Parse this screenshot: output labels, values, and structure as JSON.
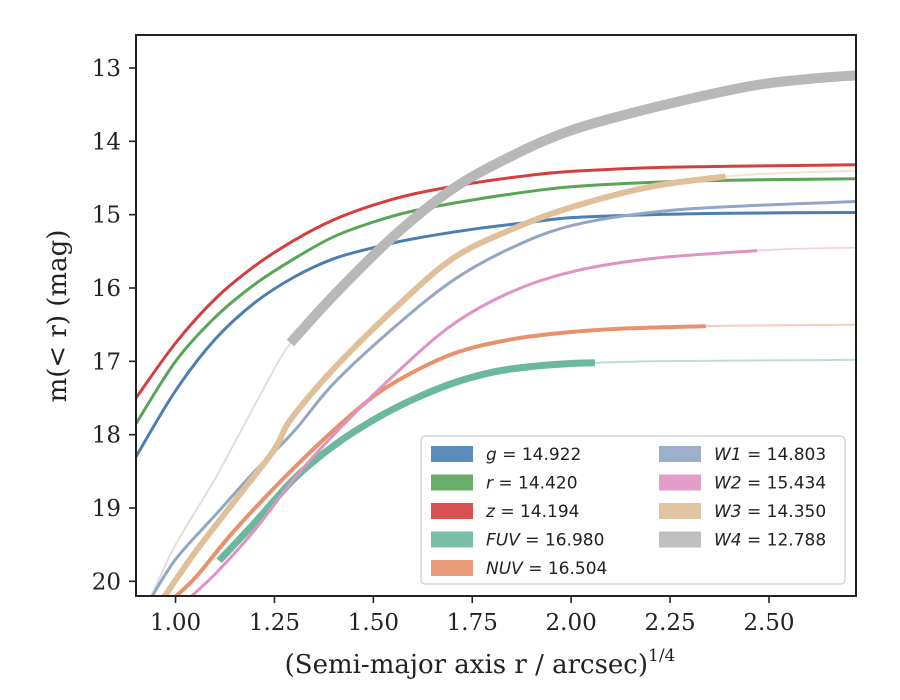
{
  "chart_data": {
    "type": "line",
    "xlabel": "(Semi-major axis r / arcsec)",
    "xlabel_sup": "1/4",
    "ylabel": "m(< r) (mag)",
    "xlim": [
      0.9,
      2.72
    ],
    "ylim": [
      20.2,
      12.55
    ],
    "y_inverted": true,
    "x_ticks": [
      1.0,
      1.25,
      1.5,
      1.75,
      2.0,
      2.25,
      2.5
    ],
    "x_tick_labels": [
      "1.00",
      "1.25",
      "1.50",
      "1.75",
      "2.00",
      "2.25",
      "2.50"
    ],
    "y_ticks": [
      13,
      14,
      15,
      16,
      17,
      18,
      19,
      20
    ],
    "y_tick_labels": [
      "13",
      "14",
      "15",
      "16",
      "17",
      "18",
      "19",
      "20"
    ],
    "grid": false,
    "legend_position": "lower-right",
    "series": [
      {
        "name": "g",
        "label": "= 14.922",
        "color": "#4a7fb0",
        "width": 3,
        "faint_width": 1.6,
        "bold_until": 2.72,
        "x": [
          0.9,
          1.0,
          1.1,
          1.2,
          1.3,
          1.4,
          1.5,
          1.6,
          1.75,
          1.9,
          2.0,
          2.2,
          2.4,
          2.72
        ],
        "y": [
          18.3,
          17.4,
          16.7,
          16.2,
          15.85,
          15.6,
          15.45,
          15.33,
          15.2,
          15.1,
          15.04,
          15.0,
          14.98,
          14.97
        ]
      },
      {
        "name": "r",
        "label": "= 14.420",
        "color": "#58a558",
        "width": 3,
        "faint_width": 1.6,
        "bold_until": 2.72,
        "x": [
          0.9,
          1.0,
          1.1,
          1.2,
          1.3,
          1.4,
          1.5,
          1.6,
          1.75,
          1.9,
          2.0,
          2.2,
          2.4,
          2.72
        ],
        "y": [
          17.85,
          17.0,
          16.4,
          15.95,
          15.6,
          15.3,
          15.1,
          14.95,
          14.8,
          14.68,
          14.62,
          14.56,
          14.53,
          14.51
        ]
      },
      {
        "name": "z",
        "label": "= 14.194",
        "color": "#d33f3f",
        "width": 3,
        "faint_width": 1.6,
        "bold_until": 2.72,
        "x": [
          0.9,
          1.0,
          1.1,
          1.2,
          1.3,
          1.4,
          1.5,
          1.6,
          1.75,
          1.9,
          2.0,
          2.2,
          2.4,
          2.72
        ],
        "y": [
          17.5,
          16.75,
          16.15,
          15.7,
          15.35,
          15.07,
          14.87,
          14.72,
          14.57,
          14.46,
          14.41,
          14.36,
          14.34,
          14.32
        ]
      },
      {
        "name": "FUV",
        "label": "= 16.980",
        "color": "#6cb89e",
        "width": 7,
        "faint_width": 2,
        "bold_until": 2.06,
        "x": [
          1.11,
          1.2,
          1.3,
          1.4,
          1.5,
          1.6,
          1.7,
          1.8,
          1.9,
          2.0,
          2.06,
          2.2,
          2.4,
          2.72
        ],
        "y": [
          19.72,
          19.2,
          18.6,
          18.15,
          17.8,
          17.52,
          17.3,
          17.15,
          17.07,
          17.03,
          17.02,
          17.0,
          16.99,
          16.98
        ]
      },
      {
        "name": "NUV",
        "label": "= 16.504",
        "color": "#e8926d",
        "width": 4,
        "faint_width": 2,
        "bold_until": 2.34,
        "x": [
          0.98,
          1.05,
          1.15,
          1.3,
          1.45,
          1.55,
          1.7,
          1.85,
          2.0,
          2.15,
          2.34,
          2.5,
          2.72
        ],
        "y": [
          20.3,
          19.95,
          19.3,
          18.45,
          17.7,
          17.3,
          16.9,
          16.7,
          16.6,
          16.55,
          16.52,
          16.51,
          16.5
        ]
      },
      {
        "name": "W1",
        "label": "= 14.803",
        "color": "#93a6c8",
        "width": 3,
        "faint_width": 1.6,
        "bold_until": 2.72,
        "x": [
          0.93,
          1.0,
          1.1,
          1.2,
          1.3,
          1.4,
          1.55,
          1.7,
          1.85,
          2.0,
          2.2,
          2.4,
          2.72
        ],
        "y": [
          20.3,
          19.7,
          19.1,
          18.5,
          17.95,
          17.3,
          16.55,
          15.9,
          15.45,
          15.15,
          14.97,
          14.89,
          14.82
        ]
      },
      {
        "name": "W2",
        "label": "= 15.434",
        "color": "#df93c3",
        "width": 3,
        "faint_width": 1.6,
        "bold_until": 2.47,
        "x": [
          1.02,
          1.1,
          1.2,
          1.3,
          1.4,
          1.55,
          1.7,
          1.85,
          2.0,
          2.2,
          2.47,
          2.6,
          2.72
        ],
        "y": [
          20.3,
          19.9,
          19.3,
          18.6,
          18.0,
          17.2,
          16.5,
          16.05,
          15.78,
          15.6,
          15.49,
          15.46,
          15.45
        ]
      },
      {
        "name": "W3",
        "label": "= 14.350",
        "color": "#dfc09a",
        "width": 6,
        "faint_width": 2,
        "bold_until": 2.39,
        "x": [
          0.96,
          1.05,
          1.15,
          1.25,
          1.29,
          1.4,
          1.55,
          1.7,
          1.85,
          2.0,
          2.2,
          2.39,
          2.55,
          2.72
        ],
        "y": [
          20.3,
          19.6,
          18.9,
          18.2,
          17.8,
          17.1,
          16.3,
          15.6,
          15.2,
          14.9,
          14.62,
          14.48,
          14.43,
          14.4
        ]
      },
      {
        "name": "W4",
        "label": "= 12.788",
        "color": "#b8b8b8",
        "width": 10,
        "faint_width": 2,
        "bold_from": 1.29,
        "x": [
          0.93,
          1.0,
          1.1,
          1.2,
          1.29,
          1.4,
          1.55,
          1.7,
          1.85,
          2.0,
          2.2,
          2.45,
          2.6,
          2.72
        ],
        "y": [
          20.3,
          19.5,
          18.6,
          17.6,
          16.75,
          16.1,
          15.3,
          14.65,
          14.2,
          13.85,
          13.55,
          13.25,
          13.15,
          13.1
        ]
      }
    ]
  }
}
